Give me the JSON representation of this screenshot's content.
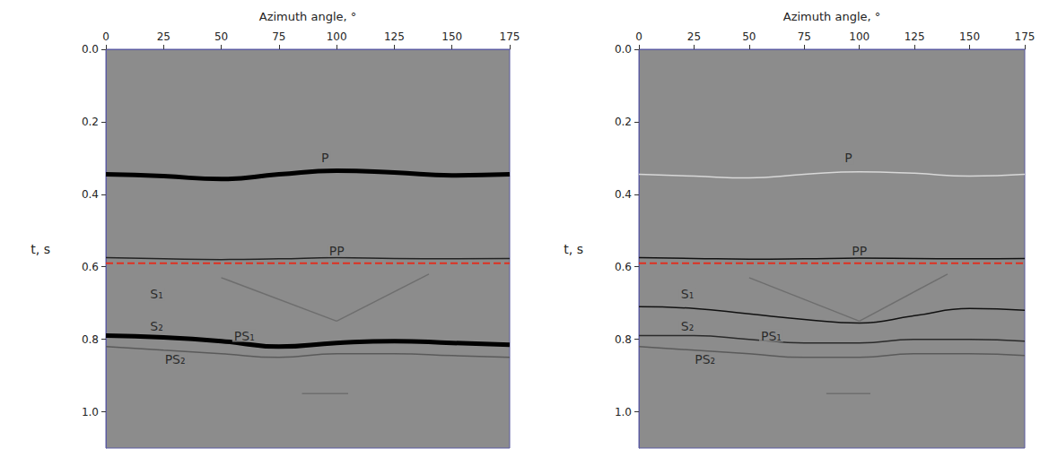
{
  "chart_data": [
    {
      "type": "line",
      "x_label": "Azimuth angle, °",
      "y_label": "t, s",
      "xlim": [
        0,
        175
      ],
      "xticks": [
        0,
        25,
        50,
        75,
        100,
        125,
        150,
        175
      ],
      "ylim": [
        0,
        1.1
      ],
      "yticks": [
        {
          "value": 0,
          "label": "0.0"
        },
        0.2,
        0.4,
        0.6,
        0.8,
        {
          "value": 1,
          "label": "1.0"
        }
      ],
      "series": [
        {
          "x": [
            0,
            25,
            50,
            75,
            100,
            125,
            150,
            175
          ],
          "values": [
            0.345,
            0.35,
            0.358,
            0.345,
            0.335,
            0.34,
            0.348,
            0.345
          ],
          "color": "#000000",
          "line_style": "thick"
        },
        {
          "x": [
            0,
            25,
            50,
            75,
            100,
            125,
            150,
            175
          ],
          "values": [
            0.575,
            0.578,
            0.58,
            0.578,
            0.575,
            0.577,
            0.578,
            0.577
          ],
          "color": "#222222",
          "line_style": "thin"
        },
        {
          "x": [
            50,
            100
          ],
          "values": [
            0.63,
            0.75
          ],
          "color": "#6e6e6e",
          "line_style": "thin"
        },
        {
          "x": [
            100,
            140
          ],
          "values": [
            0.75,
            0.62
          ],
          "color": "#6e6e6e",
          "line_style": "thin"
        },
        {
          "x": [
            0,
            25,
            50,
            75,
            100,
            125,
            150,
            175
          ],
          "values": [
            0.79,
            0.795,
            0.805,
            0.82,
            0.81,
            0.805,
            0.81,
            0.815
          ],
          "color": "#000000",
          "line_style": "thick"
        },
        {
          "x": [
            0,
            25,
            50,
            75,
            100,
            125,
            150,
            175
          ],
          "values": [
            0.82,
            0.83,
            0.84,
            0.85,
            0.84,
            0.84,
            0.845,
            0.85
          ],
          "color": "#5a5a5a",
          "line_style": "thin"
        },
        {
          "x": [
            85,
            105
          ],
          "values": [
            0.95,
            0.95
          ],
          "color": "#6e6e6e",
          "line_style": "thin"
        },
        {
          "x": [
            0,
            175
          ],
          "values": [
            0.59,
            0.59
          ],
          "color": "#e03020",
          "line_style": "dashed"
        }
      ],
      "annotations": [
        {
          "text": "P",
          "x": 95,
          "t": 0.3
        },
        {
          "text": "PP",
          "x": 100,
          "t": 0.555
        },
        {
          "text": "S₁",
          "x": 22,
          "t": 0.675
        },
        {
          "text": "S₂",
          "x": 22,
          "t": 0.765
        },
        {
          "text": "PS₁",
          "x": 60,
          "t": 0.79
        },
        {
          "text": "PS₂",
          "x": 30,
          "t": 0.855
        }
      ]
    },
    {
      "type": "line",
      "x_label": "Azimuth angle, °",
      "y_label": "t, s",
      "xlim": [
        0,
        175
      ],
      "xticks": [
        0,
        25,
        50,
        75,
        100,
        125,
        150,
        175
      ],
      "ylim": [
        0,
        1.1
      ],
      "yticks": [
        {
          "value": 0,
          "label": "0.0"
        },
        0.2,
        0.4,
        0.6,
        0.8,
        {
          "value": 1,
          "label": "1.0"
        }
      ],
      "series": [
        {
          "x": [
            0,
            25,
            50,
            75,
            100,
            125,
            150,
            175
          ],
          "values": [
            0.345,
            0.35,
            0.355,
            0.345,
            0.338,
            0.342,
            0.35,
            0.345
          ],
          "color": "#d8d8d8",
          "line_style": "thin"
        },
        {
          "x": [
            0,
            25,
            50,
            75,
            100,
            125,
            150,
            175
          ],
          "values": [
            0.575,
            0.577,
            0.579,
            0.578,
            0.576,
            0.577,
            0.578,
            0.577
          ],
          "color": "#111111",
          "line_style": "thin"
        },
        {
          "x": [
            0,
            25,
            50,
            75,
            100,
            125,
            150,
            175
          ],
          "values": [
            0.71,
            0.715,
            0.73,
            0.745,
            0.755,
            0.735,
            0.715,
            0.72
          ],
          "color": "#111111",
          "line_style": "thin"
        },
        {
          "x": [
            50,
            100
          ],
          "values": [
            0.63,
            0.75
          ],
          "color": "#6e6e6e",
          "line_style": "thin"
        },
        {
          "x": [
            100,
            140
          ],
          "values": [
            0.75,
            0.62
          ],
          "color": "#6e6e6e",
          "line_style": "thin"
        },
        {
          "x": [
            0,
            25,
            50,
            75,
            100,
            125,
            150,
            175
          ],
          "values": [
            0.79,
            0.79,
            0.8,
            0.81,
            0.81,
            0.8,
            0.8,
            0.805
          ],
          "color": "#2a2a2a",
          "line_style": "thin"
        },
        {
          "x": [
            0,
            25,
            50,
            75,
            100,
            125,
            150,
            175
          ],
          "values": [
            0.82,
            0.83,
            0.84,
            0.85,
            0.85,
            0.84,
            0.84,
            0.845
          ],
          "color": "#5a5a5a",
          "line_style": "thin"
        },
        {
          "x": [
            85,
            105
          ],
          "values": [
            0.95,
            0.95
          ],
          "color": "#6e6e6e",
          "line_style": "thin"
        },
        {
          "x": [
            0,
            175
          ],
          "values": [
            0.59,
            0.59
          ],
          "color": "#e03020",
          "line_style": "dashed"
        }
      ],
      "annotations": [
        {
          "text": "P",
          "x": 95,
          "t": 0.3
        },
        {
          "text": "PP",
          "x": 100,
          "t": 0.555
        },
        {
          "text": "S₁",
          "x": 22,
          "t": 0.675
        },
        {
          "text": "S₂",
          "x": 22,
          "t": 0.765
        },
        {
          "text": "PS₁",
          "x": 60,
          "t": 0.79
        },
        {
          "text": "PS₂",
          "x": 30,
          "t": 0.855
        }
      ]
    }
  ]
}
